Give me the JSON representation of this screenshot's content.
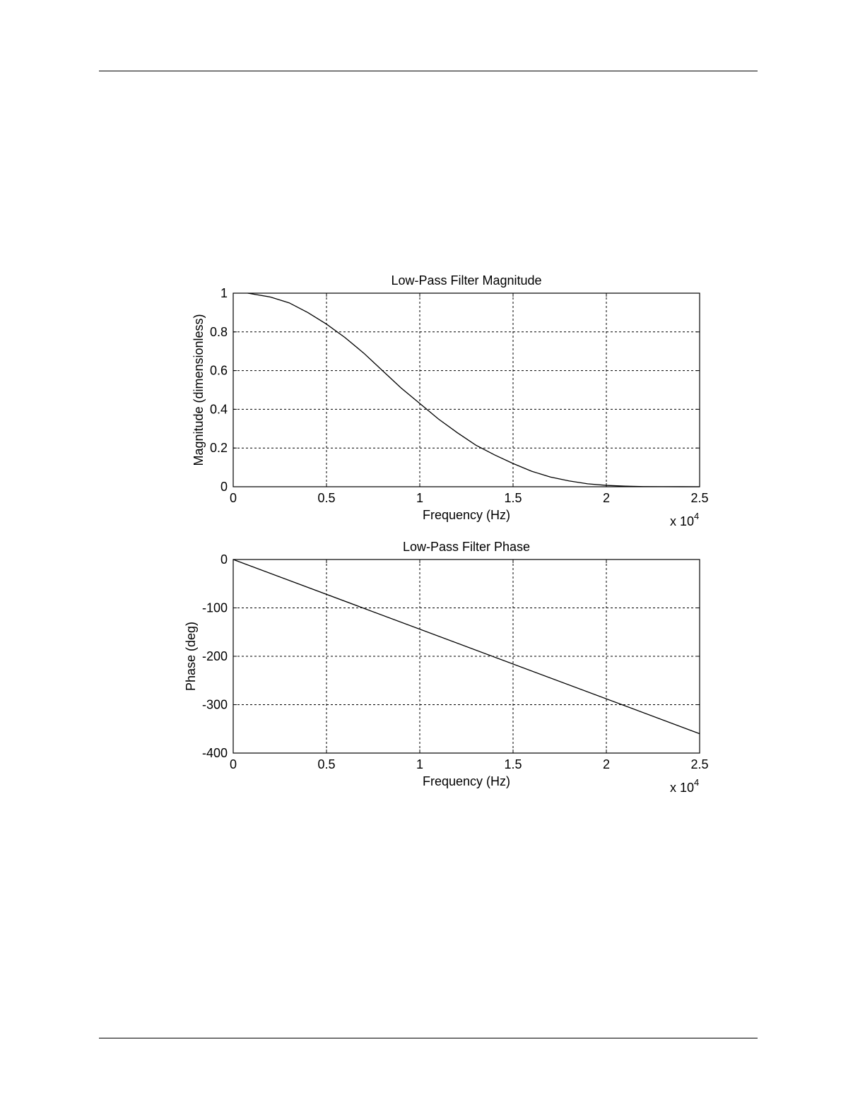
{
  "colors": {
    "line": "#000000",
    "grid": "#000000",
    "background": "#ffffff"
  },
  "chart_data": [
    {
      "type": "line",
      "title": "Low-Pass Filter Magnitude",
      "xlabel": "Frequency (Hz)",
      "ylabel": "Magnitude (dimensionless)",
      "x_multiplier": {
        "base": "x 10",
        "exponent": "4"
      },
      "xlim": [
        0,
        25000
      ],
      "ylim": [
        0,
        1
      ],
      "grid": true,
      "x_ticks": [
        0,
        5000,
        10000,
        15000,
        20000,
        25000
      ],
      "x_tick_labels": [
        "0",
        "0.5",
        "1",
        "1.5",
        "2",
        "2.5"
      ],
      "y_ticks": [
        0,
        0.2,
        0.4,
        0.6,
        0.8,
        1
      ],
      "y_tick_labels": [
        "0",
        "0.2",
        "0.4",
        "0.6",
        "0.8",
        "1"
      ],
      "series": [
        {
          "x": [
            781,
            2000,
            3000,
            4000,
            5000,
            6000,
            7000,
            8000,
            9000,
            10000,
            11000,
            12000,
            13000,
            14000,
            15000,
            16000,
            17000,
            18000,
            19000,
            20000,
            21000,
            22000,
            23000,
            24000,
            25000
          ],
          "y": [
            1.0,
            0.98,
            0.95,
            0.9,
            0.84,
            0.77,
            0.69,
            0.6,
            0.51,
            0.43,
            0.35,
            0.28,
            0.215,
            0.165,
            0.12,
            0.08,
            0.05,
            0.03,
            0.015,
            0.007,
            0.003,
            0.001,
            0.0005,
            0.0002,
            0.0
          ]
        }
      ]
    },
    {
      "type": "line",
      "title": "Low-Pass Filter Phase",
      "xlabel": "Frequency (Hz)",
      "ylabel": "Phase (deg)",
      "x_multiplier": {
        "base": "x 10",
        "exponent": "4"
      },
      "xlim": [
        0,
        25000
      ],
      "ylim": [
        -400,
        0
      ],
      "grid": true,
      "x_ticks": [
        0,
        5000,
        10000,
        15000,
        20000,
        25000
      ],
      "x_tick_labels": [
        "0",
        "0.5",
        "1",
        "1.5",
        "2",
        "2.5"
      ],
      "y_ticks": [
        -400,
        -300,
        -200,
        -100,
        0
      ],
      "y_tick_labels": [
        "-400",
        "-300",
        "-200",
        "-100",
        "0"
      ],
      "series": [
        {
          "x": [
            0,
            25000
          ],
          "y": [
            0,
            -360
          ]
        }
      ]
    }
  ]
}
